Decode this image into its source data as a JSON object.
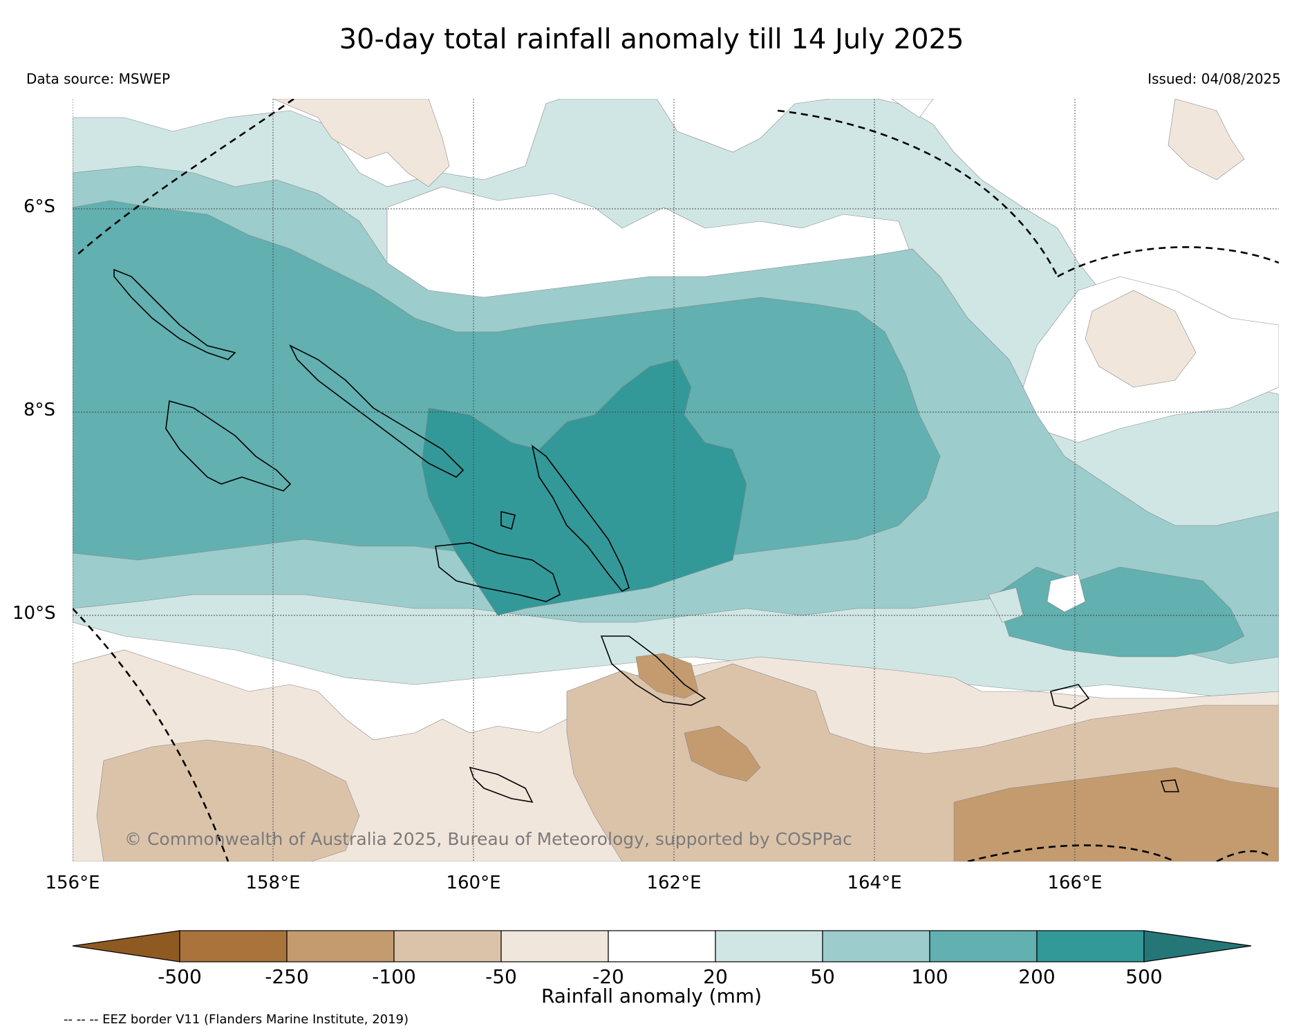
{
  "title": "30-day total rainfall anomaly till 14 July 2025",
  "data_source": "Data source: MSWEP",
  "issued": "Issued: 04/08/2025",
  "copyright": "© Commonwealth of Australia 2025, Bureau of Meteorology, supported by COSPPac",
  "lat_labels": [
    "6°S",
    "8°S",
    "10°S"
  ],
  "lon_labels": [
    "156°E",
    "158°E",
    "160°E",
    "162°E",
    "164°E",
    "166°E"
  ],
  "colorbar": {
    "label": "Rainfall anomaly (mm)",
    "ticks": [
      "-500",
      "-250",
      "-100",
      "-50",
      "-20",
      "20",
      "50",
      "100",
      "200",
      "500"
    ],
    "colors": [
      "#8f5a22",
      "#aa733c",
      "#c39b6f",
      "#dbc3aa",
      "#f1e6dc",
      "#ffffff",
      "#cfe6e5",
      "#9ccccc",
      "#62b0b0",
      "#339898",
      "#257777"
    ]
  },
  "legend_note": "-- -- -- EEZ border V11 (Flanders Marine Institute, 2019)"
}
